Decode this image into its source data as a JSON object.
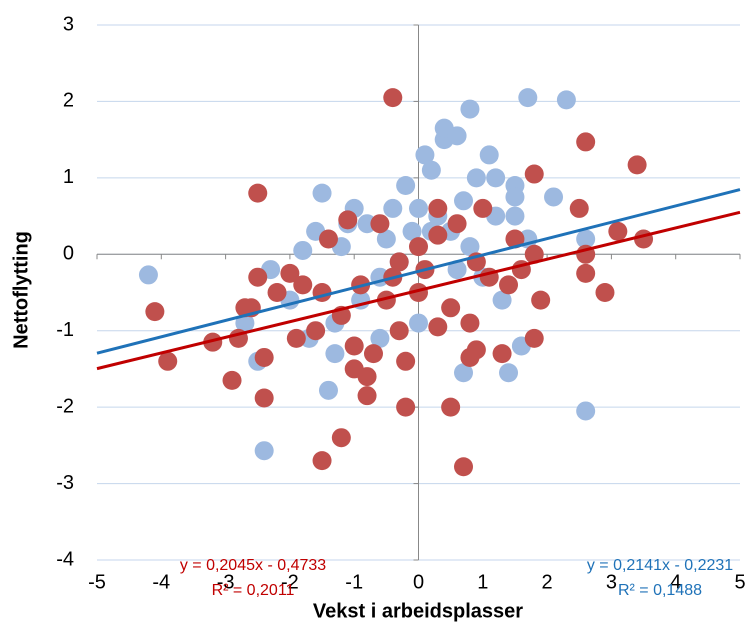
{
  "chart_data": {
    "type": "scatter",
    "x_label": "Vekst i arbeidsplasser",
    "y_label": "Nettoflytting",
    "xlim": [
      -5,
      5
    ],
    "ylim": [
      -4,
      3
    ],
    "xticks": [
      -5,
      -4,
      -3,
      -2,
      -1,
      0,
      1,
      2,
      3,
      4,
      5
    ],
    "yticks": [
      -4,
      -3,
      -2,
      -1,
      0,
      1,
      2,
      3
    ],
    "grid": true,
    "series": [
      {
        "color": "#9db9e0",
        "line_color": "#1f72b8",
        "x": [
          -4.2,
          -2.4,
          -1.4,
          -1.5,
          -1.1,
          -1,
          -0.8,
          -0.5,
          -0.2,
          0,
          0.1,
          0.2,
          0.4,
          0.4,
          0.6,
          0.8,
          1.1,
          1.7,
          2.3,
          2.6,
          0.7,
          1.4,
          1.6,
          2.1,
          1.5,
          1.5,
          1.2,
          0.9,
          0.7,
          0.5,
          0.3,
          -0.1,
          -0.3,
          -0.6,
          -0.9,
          -1.3,
          -1.7,
          -2,
          -2.3,
          -2.7,
          -1.8,
          -1.6,
          -1.2,
          -0.4,
          0.2,
          0.6,
          1,
          1.3,
          1.7,
          1.2,
          0.8,
          -0.6,
          0,
          1.5,
          2.6,
          -2.5,
          -1.3
        ],
        "y": [
          -0.27,
          -2.57,
          -1.78,
          0.8,
          0.4,
          0.6,
          0.4,
          0.2,
          0.9,
          0.6,
          1.3,
          1.1,
          1.5,
          1.65,
          1.55,
          1.9,
          1.3,
          2.05,
          2.02,
          -2.05,
          -1.55,
          -1.55,
          -1.2,
          0.75,
          0.9,
          0.75,
          1,
          1,
          0.7,
          0.3,
          0.5,
          0.3,
          -0.1,
          -0.3,
          -0.6,
          -0.9,
          -1.1,
          -0.6,
          -0.2,
          -0.9,
          0.05,
          0.3,
          0.1,
          0.6,
          0.3,
          -0.2,
          -0.3,
          -0.6,
          0.2,
          0.5,
          0.1,
          -1.1,
          -0.9,
          0.5,
          0.2,
          -1.4,
          -1.3
        ],
        "trendline": {
          "slope": 0.2141,
          "intercept": -0.2231,
          "equation": "y = 0,2141x - 0,2231",
          "r2": "R² = 0,1488"
        }
      },
      {
        "color": "#c0504d",
        "line_color": "#c00000",
        "x": [
          -4.1,
          -3.9,
          -3.2,
          -2.9,
          -2.5,
          -2.4,
          -2.4,
          -2.6,
          -2.5,
          -2.2,
          -2,
          -1.9,
          -1.5,
          -1.2,
          -1.1,
          -1.4,
          -0.8,
          -0.8,
          -0.4,
          -0.2,
          0.5,
          0.7,
          0.8,
          0.9,
          1.3,
          1.8,
          1.9,
          2.9,
          2.6,
          2.6,
          2.5,
          2.6,
          3.4,
          3.1,
          3.5,
          1.8,
          1.8,
          1.5,
          1,
          0.6,
          0.3,
          0.3,
          0,
          -0.3,
          -0.6,
          -0.9,
          -1.2,
          -1.6,
          -1.8,
          -0.5,
          0,
          0.5,
          0.8,
          1.1,
          1.4,
          -0.3,
          -0.2,
          0.3,
          -1,
          -1,
          -0.7,
          -2.8,
          -2.7,
          -1.5,
          -0.4,
          0.1,
          0.9,
          1.6
        ],
        "y": [
          -0.75,
          -1.4,
          -1.15,
          -1.65,
          0.8,
          -1.88,
          -1.35,
          -0.7,
          -0.3,
          -0.5,
          -0.25,
          -1.1,
          -2.7,
          -2.4,
          0.45,
          0.2,
          -1.85,
          -1.6,
          2.05,
          -2,
          -2,
          -2.78,
          -1.35,
          -1.25,
          -1.3,
          -1.1,
          -0.6,
          -0.5,
          -0.25,
          0,
          0.6,
          1.47,
          1.17,
          0.3,
          0.2,
          1.05,
          0,
          0.2,
          0.6,
          0.4,
          0.25,
          0.6,
          0.1,
          -0.1,
          0.4,
          -0.4,
          -0.8,
          -1,
          -0.4,
          -0.6,
          -0.5,
          -0.7,
          -0.9,
          -0.3,
          -0.4,
          -1,
          -1.4,
          -0.95,
          -1.2,
          -1.5,
          -1.3,
          -1.1,
          -0.7,
          -0.5,
          -0.3,
          -0.2,
          -0.1,
          -0.2
        ],
        "trendline": {
          "slope": 0.2045,
          "intercept": -0.4733,
          "equation": "y = 0,2045x - 0,4733",
          "r2": "R² = 0,2011"
        }
      }
    ]
  }
}
